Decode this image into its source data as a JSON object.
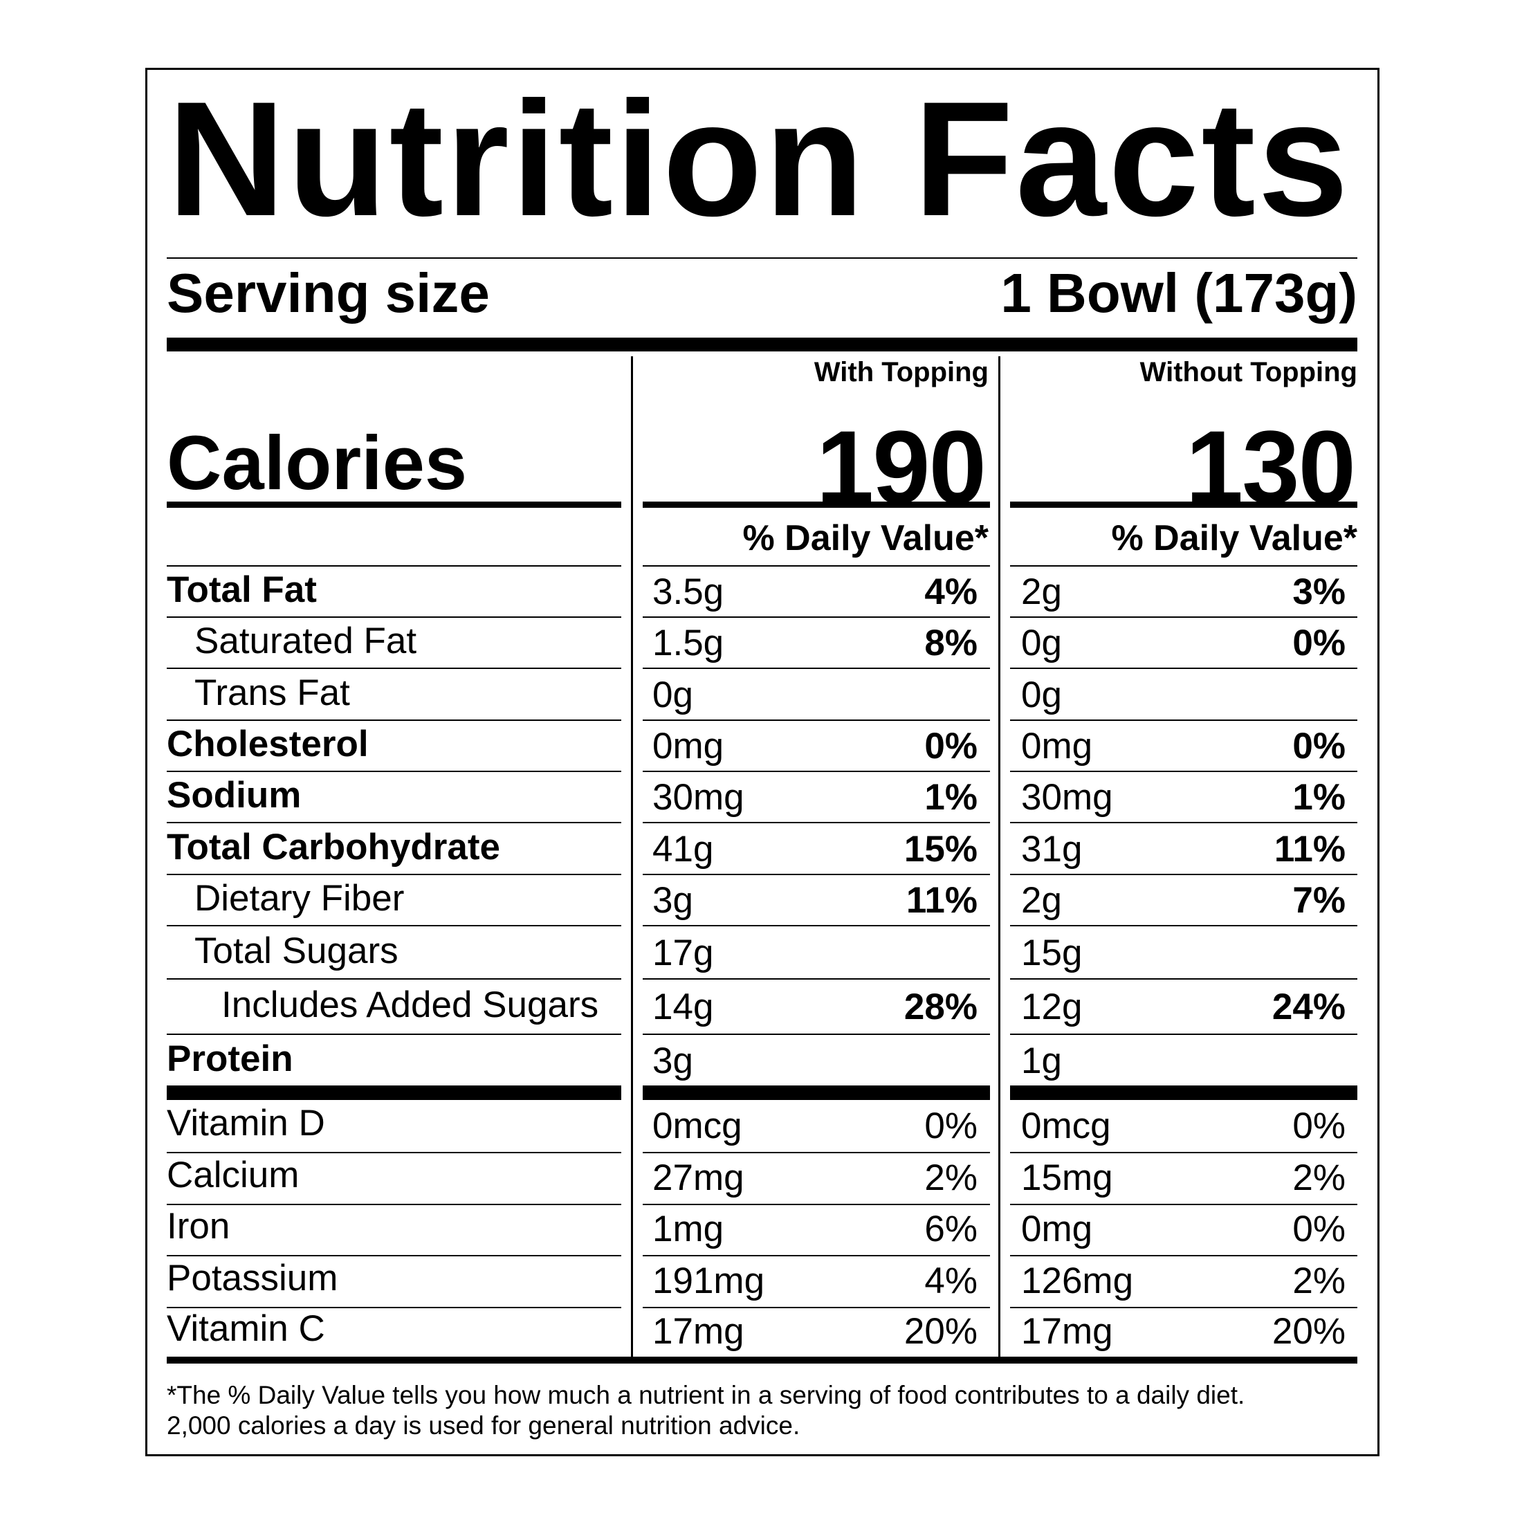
{
  "title": "Nutrition Facts",
  "serving": {
    "label": "Serving size",
    "value": "1 Bowl (173g)"
  },
  "calories_label": "Calories",
  "columns": [
    {
      "header": "With Topping",
      "calories": "190",
      "dv_header": "% Daily Value*"
    },
    {
      "header": "Without Topping",
      "calories": "130",
      "dv_header": "% Daily Value*"
    }
  ],
  "nutrients": [
    {
      "label": "Total Fat",
      "bold": true,
      "indent": 0,
      "values": [
        [
          "3.5g",
          "4%"
        ],
        [
          "2g",
          "3%"
        ]
      ]
    },
    {
      "label": "Saturated Fat",
      "bold": false,
      "indent": 1,
      "values": [
        [
          "1.5g",
          "8%"
        ],
        [
          "0g",
          "0%"
        ]
      ]
    },
    {
      "label": "Trans Fat",
      "bold": false,
      "indent": 1,
      "values": [
        [
          "0g",
          ""
        ],
        [
          "0g",
          ""
        ]
      ]
    },
    {
      "label": "Cholesterol",
      "bold": true,
      "indent": 0,
      "values": [
        [
          "0mg",
          "0%"
        ],
        [
          "0mg",
          "0%"
        ]
      ]
    },
    {
      "label": "Sodium",
      "bold": true,
      "indent": 0,
      "values": [
        [
          "30mg",
          "1%"
        ],
        [
          "30mg",
          "1%"
        ]
      ]
    },
    {
      "label": "Total Carbohydrate",
      "bold": true,
      "indent": 0,
      "values": [
        [
          "41g",
          "15%"
        ],
        [
          "31g",
          "11%"
        ]
      ]
    },
    {
      "label": "Dietary Fiber",
      "bold": false,
      "indent": 1,
      "values": [
        [
          "3g",
          "11%"
        ],
        [
          "2g",
          "7%"
        ]
      ]
    },
    {
      "label": "Total Sugars",
      "bold": false,
      "indent": 1,
      "values": [
        [
          "17g",
          ""
        ],
        [
          "15g",
          ""
        ]
      ]
    },
    {
      "label": "Includes Added Sugars",
      "bold": false,
      "indent": 2,
      "values": [
        [
          "14g",
          "28%"
        ],
        [
          "12g",
          "24%"
        ]
      ]
    },
    {
      "label": "Protein",
      "bold": true,
      "indent": 0,
      "values": [
        [
          "3g",
          ""
        ],
        [
          "1g",
          ""
        ]
      ]
    }
  ],
  "vitamins": [
    {
      "label": "Vitamin D",
      "values": [
        [
          "0mcg",
          "0%"
        ],
        [
          "0mcg",
          "0%"
        ]
      ]
    },
    {
      "label": "Calcium",
      "values": [
        [
          "27mg",
          "2%"
        ],
        [
          "15mg",
          "2%"
        ]
      ]
    },
    {
      "label": "Iron",
      "values": [
        [
          "1mg",
          "6%"
        ],
        [
          "0mg",
          "0%"
        ]
      ]
    },
    {
      "label": "Potassium",
      "values": [
        [
          "191mg",
          "4%"
        ],
        [
          "126mg",
          "2%"
        ]
      ]
    },
    {
      "label": "Vitamin C",
      "values": [
        [
          "17mg",
          "20%"
        ],
        [
          "17mg",
          "20%"
        ]
      ]
    }
  ],
  "footnote": {
    "line1": "*The % Daily Value tells you how much a nutrient in a serving of food contributes to a daily diet.",
    "line2": "2,000 calories a day is used for general nutrition advice."
  }
}
